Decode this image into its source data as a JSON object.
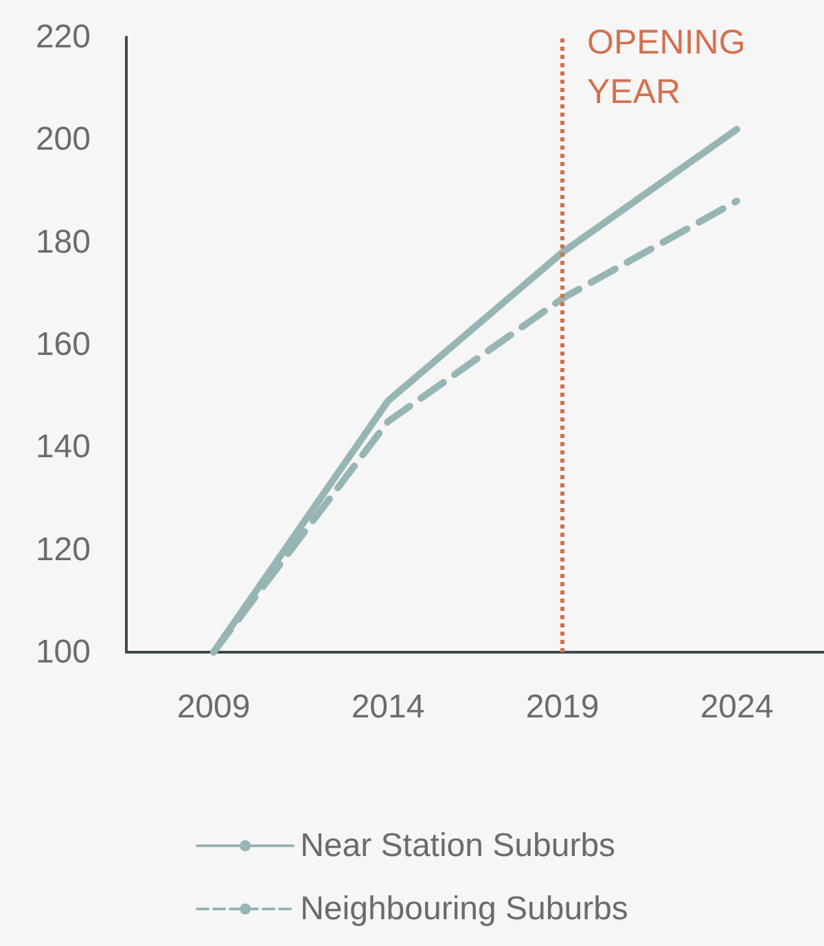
{
  "chart_data": {
    "type": "line",
    "categories": [
      "2009",
      "2014",
      "2019",
      "2024"
    ],
    "series": [
      {
        "name": "Near Station Suburbs",
        "color": "#97b5b5",
        "values": [
          100,
          149,
          178,
          202
        ],
        "line_style": "solid"
      },
      {
        "name": "Neighbouring Suburbs",
        "color": "#97b5b5",
        "values": [
          100,
          145,
          169,
          188
        ],
        "line_style": "dashed"
      }
    ],
    "ylim": [
      100,
      220
    ],
    "yticks": [
      100,
      120,
      140,
      160,
      180,
      200,
      220
    ],
    "ref_lines": [
      {
        "axis": "x",
        "value": "2019",
        "label": "OPENING YEAR",
        "color": "#d4704f",
        "line_style": "dotted"
      }
    ],
    "grid": false,
    "legend": "bottom",
    "marker": "none"
  }
}
